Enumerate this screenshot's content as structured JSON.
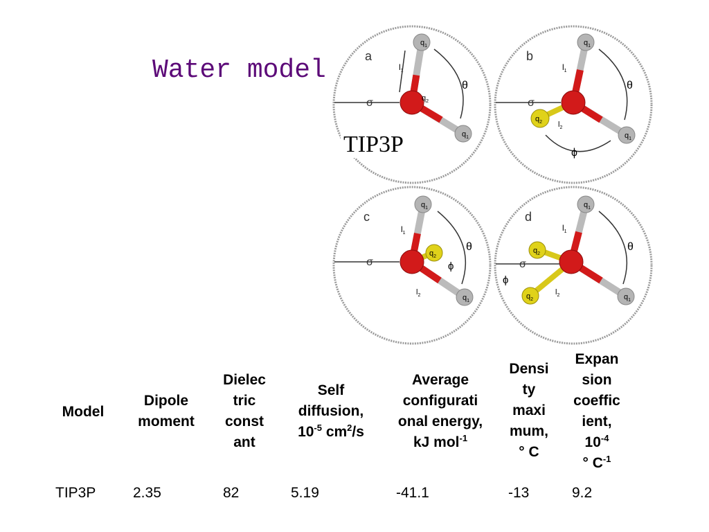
{
  "slide": {
    "title": "Water model",
    "tip_label": "TIP3P"
  },
  "panels": [
    {
      "id": "a",
      "letter": "a",
      "labels": {
        "q1": "q",
        "q1_sub": "1",
        "l1": "l",
        "l1_sub": "1",
        "q2": "q",
        "q2_sub": "2",
        "theta": "θ",
        "sigma": "σ"
      }
    },
    {
      "id": "b",
      "letter": "b",
      "labels": {
        "q1": "q",
        "q1_sub": "1",
        "l1": "l",
        "l1_sub": "1",
        "l2": "l",
        "l2_sub": "2",
        "q2": "q",
        "q2_sub": "2",
        "theta": "θ",
        "phi": "ϕ",
        "sigma": "σ"
      }
    },
    {
      "id": "c",
      "letter": "c",
      "labels": {
        "q1": "q",
        "q1_sub": "1",
        "l1": "l",
        "l1_sub": "1",
        "l2": "l",
        "l2_sub": "2",
        "q2": "q",
        "q2_sub": "2",
        "theta": "θ",
        "phi": "ϕ",
        "sigma": "σ"
      }
    },
    {
      "id": "d",
      "letter": "d",
      "labels": {
        "q1": "q",
        "q1_sub": "1",
        "l1": "l",
        "l1_sub": "1",
        "l2": "l",
        "l2_sub": "2",
        "q2": "q",
        "q2_sub": "2",
        "theta": "θ",
        "phi": "ϕ",
        "sigma": "σ"
      }
    }
  ],
  "table": {
    "headers": {
      "model": "Model",
      "dipole": "Dipole\nmoment",
      "dielectric": "Dielec\ntric\nconst\nant",
      "self_diffusion_1": "Self\ndiffusion,\n10",
      "self_diffusion_exp": "-5",
      "self_diffusion_2": " cm",
      "self_diffusion_exp2": "2",
      "self_diffusion_3": "/s",
      "avg_energy_1": "Average\nconfigurati\nonal energy,\nkJ mol",
      "avg_energy_exp": "-1",
      "density_max": "Densi\nty\nmaxi\nmum,\n° C",
      "expansion_1": "Expan\nsion\ncoeffic\nient,\n10",
      "expansion_exp": "-4",
      "expansion_2": "\n° C",
      "expansion_exp2": "-1"
    },
    "rows": [
      {
        "model": "TIP3P",
        "dipole": "2.35",
        "dielectric": "82",
        "self_diffusion": "5.19",
        "avg_energy": "-41.1",
        "density_max": "-13",
        "expansion": "9.2"
      }
    ]
  },
  "colors": {
    "title": "#5c0a78",
    "oxygen": "#d21a1a",
    "hydrogen": "#b4b4b4",
    "extra_site": "#e0d21a"
  }
}
